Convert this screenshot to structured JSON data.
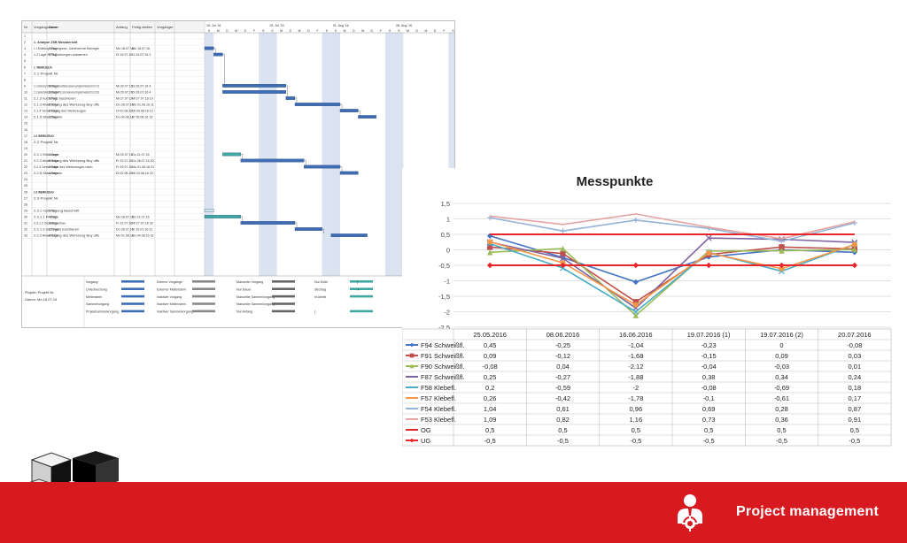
{
  "gantt": {
    "columns": [
      "Nr",
      "Vorgangsname",
      "Dauer",
      "Anfang",
      "Fertig stellen",
      "Vorgänger"
    ],
    "week_headers": [
      "18. Jul '16",
      "25. Jul '16",
      "01. Aug '16",
      "08. Aug '16"
    ],
    "day_letters": [
      "S",
      "M",
      "D",
      "M",
      "D",
      "F",
      "S",
      "S",
      "M",
      "D",
      "M",
      "D",
      "F",
      "S",
      "S",
      "M",
      "D",
      "M",
      "D",
      "F",
      "S",
      "S",
      "M",
      "D",
      "M",
      "D",
      "F",
      "S"
    ],
    "rows": [
      {
        "nr": "1",
        "name": "",
        "dauer": "",
        "anfang": "",
        "fertig": "",
        "bold": false
      },
      {
        "nr": "2",
        "name": "1. Analyse ZSB Messbericht",
        "dauer": "",
        "anfang": "",
        "fertig": "",
        "bold": true
      },
      {
        "nr": "3",
        "name": "1.1 Erstellung Messprogramm - Aufnehmen der Bohrungen",
        "dauer": "1 Tag",
        "anfang": "Mo 18.07.16",
        "fertig": "Mo 18.07.16",
        "bold": false
      },
      {
        "nr": "4",
        "name": "1.2 Lage RPS-Bohrungen auswerten",
        "dauer": "1 Tag",
        "anfang": "Di 19.07.16",
        "fertig": "Di 19.07.16 3",
        "bold": false
      },
      {
        "nr": "5",
        "name": "",
        "dauer": "",
        "anfang": "",
        "fertig": "",
        "bold": false
      },
      {
        "nr": "6",
        "name": "1. WERKZEUG",
        "dauer": "",
        "anfang": "",
        "fertig": "",
        "bold": true
      },
      {
        "nr": "7",
        "name": "2.1 Projekt Nr.",
        "dauer": "",
        "anfang": "",
        "fertig": "",
        "bold": false
      },
      {
        "nr": "8",
        "name": "",
        "dauer": "",
        "anfang": "",
        "fertig": "",
        "bold": false
      },
      {
        "nr": "9",
        "name": "2.1.1 Optimierung Schleife Klebe-/Schweißfläche basierend auf Ergebnis Messbericht 19.07.16",
        "dauer": "5 Tage",
        "anfang": "Mi 20.07.16",
        "fertig": "Di 26.07.16 4",
        "bold": false
      },
      {
        "nr": "10",
        "name": "2.1.2 optional Optimierung Schleife RPS Löcher basierend auf Ergebnis Messbericht 19.07.2016",
        "dauer": "5 Tage",
        "anfang": "Mi 20.07.16",
        "fertig": "Di 26.07.16 4",
        "bold": false
      },
      {
        "nr": "11",
        "name": "2.1.3 nochmals tuschieren",
        "dauer": "1 Tag",
        "anfang": "Mi 27.07.16",
        "fertig": "Mi 27.07.16 10",
        "bold": false
      },
      {
        "nr": "12",
        "name": "2.1.3 Abarbeitung des Werkzeug Buy offs",
        "dauer": "5 Tage",
        "anfang": "Do 28.07.16",
        "fertig": "Mo 01.08.16 11",
        "bold": false
      },
      {
        "nr": "13",
        "name": "2.1.4 Verwendung des Werkzeuges",
        "dauer": "2 Tage",
        "anfang": "Di 02.08.16",
        "fertig": "Mi 03.08.16 12",
        "bold": false
      },
      {
        "nr": "14",
        "name": "2.1.5 Stanztermin",
        "dauer": "2 Tage",
        "anfang": "Do 04.08.16",
        "fertig": "Fr 05.08.16 13",
        "bold": false
      },
      {
        "nr": "15",
        "name": "",
        "dauer": "",
        "anfang": "",
        "fertig": "",
        "bold": false
      },
      {
        "nr": "16",
        "name": "",
        "dauer": "",
        "anfang": "",
        "fertig": "",
        "bold": false
      },
      {
        "nr": "17",
        "name": "2.2 WERKZEUG",
        "dauer": "",
        "anfang": "",
        "fertig": "",
        "bold": true
      },
      {
        "nr": "18",
        "name": "2.2 Projekt Nr.",
        "dauer": "",
        "anfang": "",
        "fertig": "",
        "bold": false
      },
      {
        "nr": "19",
        "name": "",
        "dauer": "",
        "anfang": "",
        "fertig": "",
        "bold": false
      },
      {
        "nr": "20",
        "name": "2.2.1 Einbolzen",
        "dauer": "2 Tage",
        "anfang": "Mi 20.07.16",
        "fertig": "Do 21.07.16",
        "bold": false
      },
      {
        "nr": "21",
        "name": "2.2.2 Abarbeitung des Werkzeug Buy offs",
        "dauer": "5 Tage",
        "anfang": "Fr 22.07.16",
        "fertig": "Do 28.07.16 20",
        "bold": false
      },
      {
        "nr": "22",
        "name": "2.2.4 Verwenden des Werkzeuges nach",
        "dauer": "2 Tage",
        "anfang": "Fr 29.07.16",
        "fertig": "Mo 01.08.16 21",
        "bold": false
      },
      {
        "nr": "23",
        "name": "2.2.5 Stanztermin",
        "dauer": "2 Tage",
        "anfang": "Di 02.08.16",
        "fertig": "Mi 03.08.16 22",
        "bold": false
      },
      {
        "nr": "24",
        "name": "",
        "dauer": "",
        "anfang": "",
        "fertig": "",
        "bold": false
      },
      {
        "nr": "25",
        "name": "",
        "dauer": "",
        "anfang": "",
        "fertig": "",
        "bold": false
      },
      {
        "nr": "26",
        "name": "2.3 WERKZEUG",
        "dauer": "",
        "anfang": "",
        "fertig": "",
        "bold": true
      },
      {
        "nr": "27",
        "name": "2.3 Projekt Nr.",
        "dauer": "",
        "anfang": "",
        "fertig": "",
        "bold": false
      },
      {
        "nr": "28",
        "name": "",
        "dauer": "",
        "anfang": "",
        "fertig": "",
        "bold": false
      },
      {
        "nr": "29",
        "name": "2.3.1 Optimierung Beschnitt",
        "dauer": "1 Tag",
        "anfang": "",
        "fertig": "",
        "bold": false
      },
      {
        "nr": "30",
        "name": "2.3.1.1 Fräsen",
        "dauer": "4 Tage",
        "anfang": "Mo 18.07.16",
        "fertig": "Do 21.07.16",
        "bold": false
      },
      {
        "nr": "31",
        "name": "2.3.1.2 Zusammenbau",
        "dauer": "4 Tage",
        "anfang": "Fr 22.07.16",
        "fertig": "Mi 27.07.16 30",
        "bold": false
      },
      {
        "nr": "32",
        "name": "2.3.1.3 nochmals tuschieren",
        "dauer": "2 Tage",
        "anfang": "Do 28.07.16",
        "fertig": "Fr 29.07.16 31",
        "bold": false
      },
      {
        "nr": "33",
        "name": "2.3.2 Abarbeitung des Werkzeug Buy offs",
        "dauer": "4 Tage",
        "anfang": "Mo 01.08.16",
        "fertig": "Do 04.08.16 32",
        "bold": false
      }
    ],
    "project_label": "Projekt: Projekt Nr.",
    "date_label": "Datum: Mo 18.07.16",
    "legend": [
      [
        "Vorgang",
        "Externe Vorgänge",
        "Manueller Vorgang",
        "Nur Ende",
        "]"
      ],
      [
        "Unterbrechung",
        "Externer Meilenstein",
        "Nur Dauer",
        "Stichtag",
        "⇩"
      ],
      [
        "Meilenstein",
        "Inaktiver Vorgang",
        "Manueller Sammelvorgang",
        "nt Arbeit",
        ""
      ],
      [
        "Sammelvorgang",
        "Inaktiver Meilenstein",
        "Manueller Sammelvorgang",
        "",
        ""
      ],
      [
        "Projektsammelvorgang",
        "Inaktiver Sammelvorgang",
        "Nur Anfang",
        "[",
        ""
      ]
    ]
  },
  "chart_data": {
    "type": "line",
    "title": "Messpunkte",
    "categories": [
      "25.05.2016",
      "08.06.2016",
      "16.06.2016",
      "19.07.2016 (1)",
      "19.07.2016 (2)",
      "20.07.2016"
    ],
    "ylim": [
      -2.5,
      1.5
    ],
    "yticks": [
      "1,5",
      "1",
      "0,5",
      "0",
      "-0,5",
      "-1",
      "-1,5",
      "-2",
      "-2,5"
    ],
    "grid": true,
    "series": [
      {
        "name": "F94 Schweißfl.",
        "values": [
          0.45,
          -0.25,
          -1.04,
          -0.23,
          0,
          -0.08
        ],
        "labels": [
          "0,45",
          "-0,25",
          "-1,04",
          "-0,23",
          "0",
          "-0,08"
        ],
        "color": "#4472c4",
        "marker": "diamond"
      },
      {
        "name": "F91 Schweißfl.",
        "values": [
          0.09,
          -0.12,
          -1.68,
          -0.15,
          0.09,
          0.03
        ],
        "labels": [
          "0,09",
          "-0,12",
          "-1,68",
          "-0,15",
          "0,09",
          "0,03"
        ],
        "color": "#c0504d",
        "marker": "square"
      },
      {
        "name": "F90 Schweißfl.",
        "values": [
          -0.08,
          0.04,
          -2.12,
          -0.04,
          -0.03,
          0.01
        ],
        "labels": [
          "-0,08",
          "0,04",
          "-2,12",
          "-0,04",
          "-0,03",
          "0,01"
        ],
        "color": "#9bbb59",
        "marker": "triangle"
      },
      {
        "name": "F87 Schweißfl.",
        "values": [
          0.25,
          -0.27,
          -1.88,
          0.38,
          0.34,
          0.24
        ],
        "labels": [
          "0,25",
          "-0,27",
          "-1,88",
          "0,38",
          "0,34",
          "0,24"
        ],
        "color": "#8064a2",
        "marker": "x"
      },
      {
        "name": "F58 Klebefl.",
        "values": [
          0.2,
          -0.59,
          -2,
          -0.08,
          -0.69,
          0.18
        ],
        "labels": [
          "0,2",
          "-0,59",
          "-2",
          "-0,08",
          "-0,69",
          "0,18"
        ],
        "color": "#4bacc6",
        "marker": "x"
      },
      {
        "name": "F57 Klebefl.",
        "values": [
          0.26,
          -0.42,
          -1.78,
          -0.1,
          -0.61,
          0.17
        ],
        "labels": [
          "0,26",
          "-0,42",
          "-1,78",
          "-0,1",
          "-0,61",
          "0,17"
        ],
        "color": "#f79646",
        "marker": "circle"
      },
      {
        "name": "F54 Klebefl.",
        "values": [
          1.04,
          0.61,
          0.96,
          0.69,
          0.28,
          0.87
        ],
        "labels": [
          "1,04",
          "0,61",
          "0,96",
          "0,69",
          "0,28",
          "0,87"
        ],
        "color": "#95b3d7",
        "marker": "plus"
      },
      {
        "name": "F53 Klebefl.",
        "values": [
          1.09,
          0.82,
          1.16,
          0.73,
          0.36,
          0.91
        ],
        "labels": [
          "1,09",
          "0,82",
          "1,16",
          "0,73",
          "0,36",
          "0,91"
        ],
        "color": "#e6a4a2",
        "marker": "none"
      },
      {
        "name": "OG",
        "values": [
          0.5,
          0.5,
          0.5,
          0.5,
          0.5,
          0.5
        ],
        "labels": [
          "0,5",
          "0,5",
          "0,5",
          "0,5",
          "0,5",
          "0,5"
        ],
        "color": "#e8262a",
        "marker": "none"
      },
      {
        "name": "UG",
        "values": [
          -0.5,
          -0.5,
          -0.5,
          -0.5,
          -0.5,
          -0.5
        ],
        "labels": [
          "-0,5",
          "-0,5",
          "-0,5",
          "-0,5",
          "-0,5",
          "-0,5"
        ],
        "color": "#e8262a",
        "marker": "diamond"
      }
    ]
  },
  "footer": {
    "label": "Project management",
    "color": "#d71920",
    "icon": "project-manager-icon"
  },
  "logo": {
    "icon": "company-cube-logo"
  }
}
